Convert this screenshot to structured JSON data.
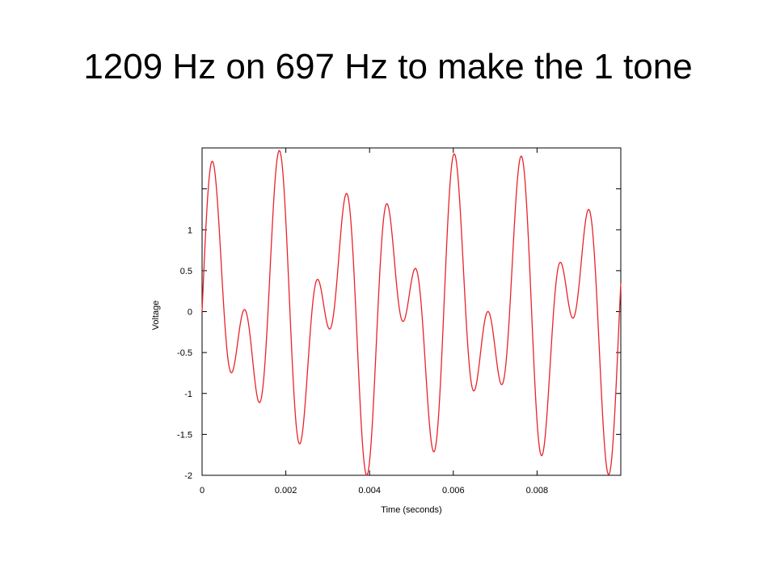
{
  "slide": {
    "title": "1209 Hz on 697 Hz to make the 1 tone"
  },
  "chart_data": {
    "type": "line",
    "title": "",
    "xlabel": "Time (seconds)",
    "ylabel": "Voltage",
    "xlim": [
      0,
      0.01
    ],
    "ylim": [
      -2,
      2
    ],
    "x_ticks": [
      0,
      0.002,
      0.004,
      0.006,
      0.008
    ],
    "x_tick_labels": [
      "0",
      "0.002",
      "0.004",
      "0.006",
      "0.008"
    ],
    "y_ticks": [
      1,
      0.5,
      0,
      -0.5,
      -1,
      -1.5,
      -2
    ],
    "y_tick_labels": [
      "1",
      "0.5",
      "0",
      "-0.5",
      "-1",
      "-1.5",
      "-2"
    ],
    "grid": false,
    "series": [
      {
        "signal": "sin(2π·1209·t) + sin(2π·697·t)",
        "frequencies_hz": [
          1209,
          697
        ],
        "color": "#e8232a"
      }
    ],
    "sample_points": [
      {
        "x": 0.0,
        "y": 0.0
      },
      {
        "x": 0.0002,
        "y": 1.81
      },
      {
        "x": 0.0006,
        "y": -0.72
      },
      {
        "x": 0.001,
        "y": 0.02
      },
      {
        "x": 0.0014,
        "y": -1.1
      },
      {
        "x": 0.0018,
        "y": 1.97
      },
      {
        "x": 0.0024,
        "y": -1.62
      },
      {
        "x": 0.0028,
        "y": 0.38
      },
      {
        "x": 0.0031,
        "y": -0.22
      },
      {
        "x": 0.0034,
        "y": 1.45
      },
      {
        "x": 0.004,
        "y": -2.0
      },
      {
        "x": 0.0044,
        "y": 1.32
      },
      {
        "x": 0.0047,
        "y": -0.12
      },
      {
        "x": 0.0051,
        "y": 0.52
      },
      {
        "x": 0.0055,
        "y": -1.7
      },
      {
        "x": 0.006,
        "y": 1.93
      },
      {
        "x": 0.0065,
        "y": -0.97
      },
      {
        "x": 0.0068,
        "y": 0.0
      },
      {
        "x": 0.0072,
        "y": -0.9
      },
      {
        "x": 0.0076,
        "y": 1.9
      },
      {
        "x": 0.0081,
        "y": -1.75
      },
      {
        "x": 0.0085,
        "y": 0.6
      },
      {
        "x": 0.0089,
        "y": -0.07
      },
      {
        "x": 0.0092,
        "y": 1.25
      },
      {
        "x": 0.0097,
        "y": -2.0
      },
      {
        "x": 0.01,
        "y": 0.28
      }
    ]
  }
}
